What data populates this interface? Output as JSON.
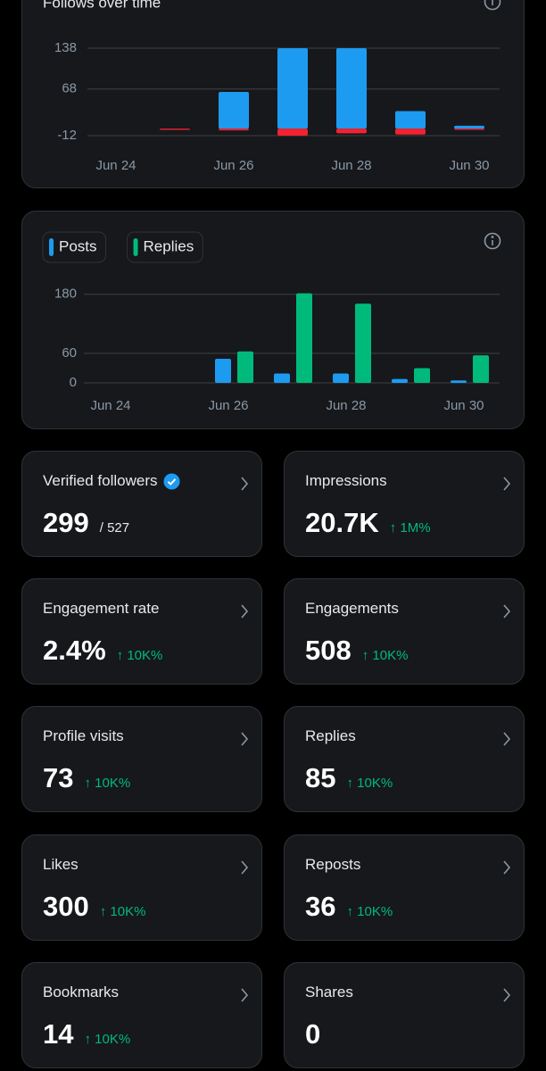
{
  "chart_data": [
    {
      "type": "bar",
      "title": "Follows over time",
      "barmode": "overlay",
      "categories": [
        "Jun 24",
        null,
        "Jun 26",
        null,
        "Jun 28",
        null,
        "Jun 30"
      ],
      "series": [
        {
          "color": "#1d9bf0",
          "values": [
            0,
            0,
            63,
            138,
            138,
            30,
            5
          ]
        },
        {
          "color": "#f4212e",
          "values": [
            0,
            -2,
            -3,
            -12,
            -8,
            -10,
            -2
          ]
        }
      ],
      "ylim": [
        -12,
        138
      ],
      "yticks": [
        138,
        68,
        -12
      ],
      "grid": true
    },
    {
      "type": "bar",
      "barmode": "group",
      "legend": "top-left",
      "categories": [
        "Jun 24",
        null,
        "Jun 26",
        null,
        "Jun 28",
        null,
        "Jun 30"
      ],
      "series": [
        {
          "name": "Posts",
          "color": "#1d9bf0",
          "values": [
            0,
            0,
            49,
            19,
            19,
            8,
            5
          ]
        },
        {
          "name": "Replies",
          "color": "#00ba7c",
          "values": [
            0,
            0,
            64,
            182,
            161,
            30,
            56
          ]
        }
      ],
      "ylim": [
        0,
        185
      ],
      "yticks": [
        180,
        60,
        0
      ],
      "grid": true
    }
  ],
  "cards": [
    {
      "title": "Verified followers",
      "value": "299",
      "total": "/ 527",
      "verified": true
    },
    {
      "title": "Impressions",
      "value": "20.7K",
      "change": "↑ 1M%"
    },
    {
      "title": "Engagement rate",
      "value": "2.4%",
      "change": "↑ 10K%"
    },
    {
      "title": "Engagements",
      "value": "508",
      "change": "↑ 10K%"
    },
    {
      "title": "Profile visits",
      "value": "73",
      "change": "↑ 10K%"
    },
    {
      "title": "Replies",
      "value": "85",
      "change": "↑ 10K%"
    },
    {
      "title": "Likes",
      "value": "300",
      "change": "↑ 10K%"
    },
    {
      "title": "Reposts",
      "value": "36",
      "change": "↑ 10K%"
    },
    {
      "title": "Bookmarks",
      "value": "14",
      "change": "↑ 10K%"
    },
    {
      "title": "Shares",
      "value": "0"
    }
  ]
}
